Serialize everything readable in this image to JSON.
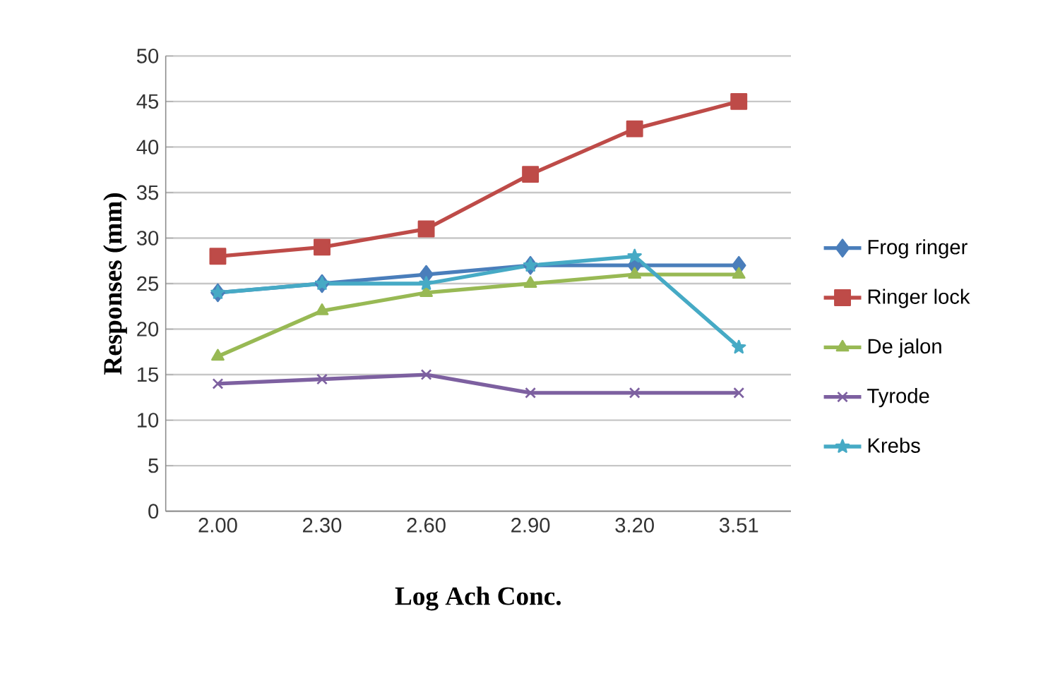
{
  "chart_data": {
    "type": "line",
    "xlabel": "Log Ach Conc.",
    "ylabel": "Responses (mm)",
    "categories": [
      "2.00",
      "2.30",
      "2.60",
      "2.90",
      "3.20",
      "3.51"
    ],
    "series": [
      {
        "name": "Frog ringer",
        "color": "#4a7ebb",
        "marker": "diamond",
        "values": [
          24,
          25,
          26,
          27,
          27,
          27
        ]
      },
      {
        "name": "Ringer lock",
        "color": "#be4b48",
        "marker": "square",
        "values": [
          28,
          29,
          31,
          37,
          42,
          45
        ]
      },
      {
        "name": "De jalon",
        "color": "#98b954",
        "marker": "triangle",
        "values": [
          17,
          22,
          24,
          25,
          26,
          26
        ]
      },
      {
        "name": "Tyrode",
        "color": "#7d60a0",
        "marker": "cross",
        "values": [
          14,
          14.5,
          15,
          13,
          13,
          13
        ]
      },
      {
        "name": "Krebs",
        "color": "#46aac5",
        "marker": "star",
        "values": [
          24,
          25,
          25,
          27,
          28,
          18
        ]
      }
    ],
    "ylim": [
      0,
      50
    ],
    "yticks": [
      0,
      5,
      10,
      15,
      20,
      25,
      30,
      35,
      40,
      45,
      50
    ],
    "grid": "y",
    "legend": "right"
  }
}
